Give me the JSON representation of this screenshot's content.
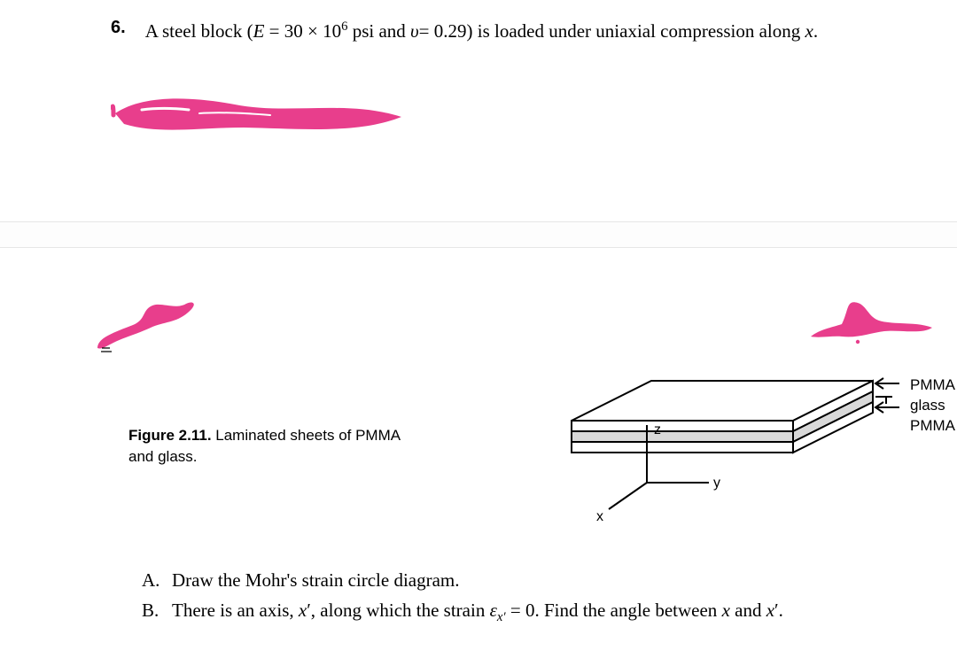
{
  "problem": {
    "number": "6.",
    "text_html": "A steel block (<span class='ital'>E</span> = 30 × 10<sup>6</sup> psi and <span class='ital'>υ</span>= 0.29) is loaded under uniaxial compression along <span class='ital'>x</span>."
  },
  "scribble_color": "#e83e8c",
  "figure": {
    "caption_bold": "Figure 2.11.",
    "caption_text": " Laminated sheets of PMMA and glass.",
    "labels": {
      "layer_top": "PMMA",
      "layer_mid": "glass",
      "layer_bot": "PMMA",
      "axis_x": "x",
      "axis_y": "y",
      "axis_z": "z"
    },
    "colors": {
      "stroke": "#000000",
      "pmma_fill": "#ffffff",
      "glass_fill": "#d9d9d9"
    }
  },
  "questions": {
    "A": {
      "letter": "A.",
      "html": "Draw the Mohr's strain circle diagram."
    },
    "B": {
      "letter": "B.",
      "html": "There is an axis, <span class='ital'>x</span>′, along which the strain <span class='ital'>ε</span><span class='sub'>x′</span> = 0. Find the angle between <span class='ital'>x</span> and <span class='ital'>x</span>′."
    }
  }
}
